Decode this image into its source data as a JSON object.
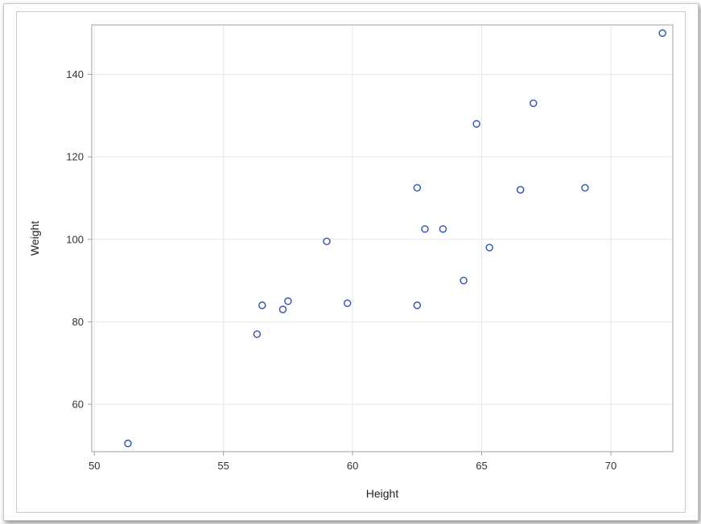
{
  "chart_data": {
    "type": "scatter",
    "xlabel": "Height",
    "ylabel": "Weight",
    "xlim": [
      49.9,
      72.4
    ],
    "ylim": [
      48.5,
      152
    ],
    "x_ticks": [
      50,
      55,
      60,
      65,
      70
    ],
    "y_ticks": [
      60,
      80,
      100,
      120,
      140
    ],
    "grid": true,
    "colors": {
      "marker": "#2e52b5",
      "grid": "#e6e6e6",
      "axis": "#a0a0a0"
    },
    "series": [
      {
        "points": [
          {
            "x": 51.3,
            "y": 50.5
          },
          {
            "x": 56.3,
            "y": 77.0
          },
          {
            "x": 56.5,
            "y": 84.0
          },
          {
            "x": 57.3,
            "y": 83.0
          },
          {
            "x": 57.5,
            "y": 85.0
          },
          {
            "x": 59.0,
            "y": 99.5
          },
          {
            "x": 59.8,
            "y": 84.5
          },
          {
            "x": 62.5,
            "y": 112.5
          },
          {
            "x": 62.5,
            "y": 84.0
          },
          {
            "x": 62.8,
            "y": 102.5
          },
          {
            "x": 63.5,
            "y": 102.5
          },
          {
            "x": 64.3,
            "y": 90.0
          },
          {
            "x": 64.8,
            "y": 128.0
          },
          {
            "x": 65.3,
            "y": 98.0
          },
          {
            "x": 66.5,
            "y": 112.0
          },
          {
            "x": 66.5,
            "y": 112.0
          },
          {
            "x": 67.0,
            "y": 133.0
          },
          {
            "x": 69.0,
            "y": 112.5
          },
          {
            "x": 72.0,
            "y": 150.0
          }
        ]
      }
    ]
  }
}
